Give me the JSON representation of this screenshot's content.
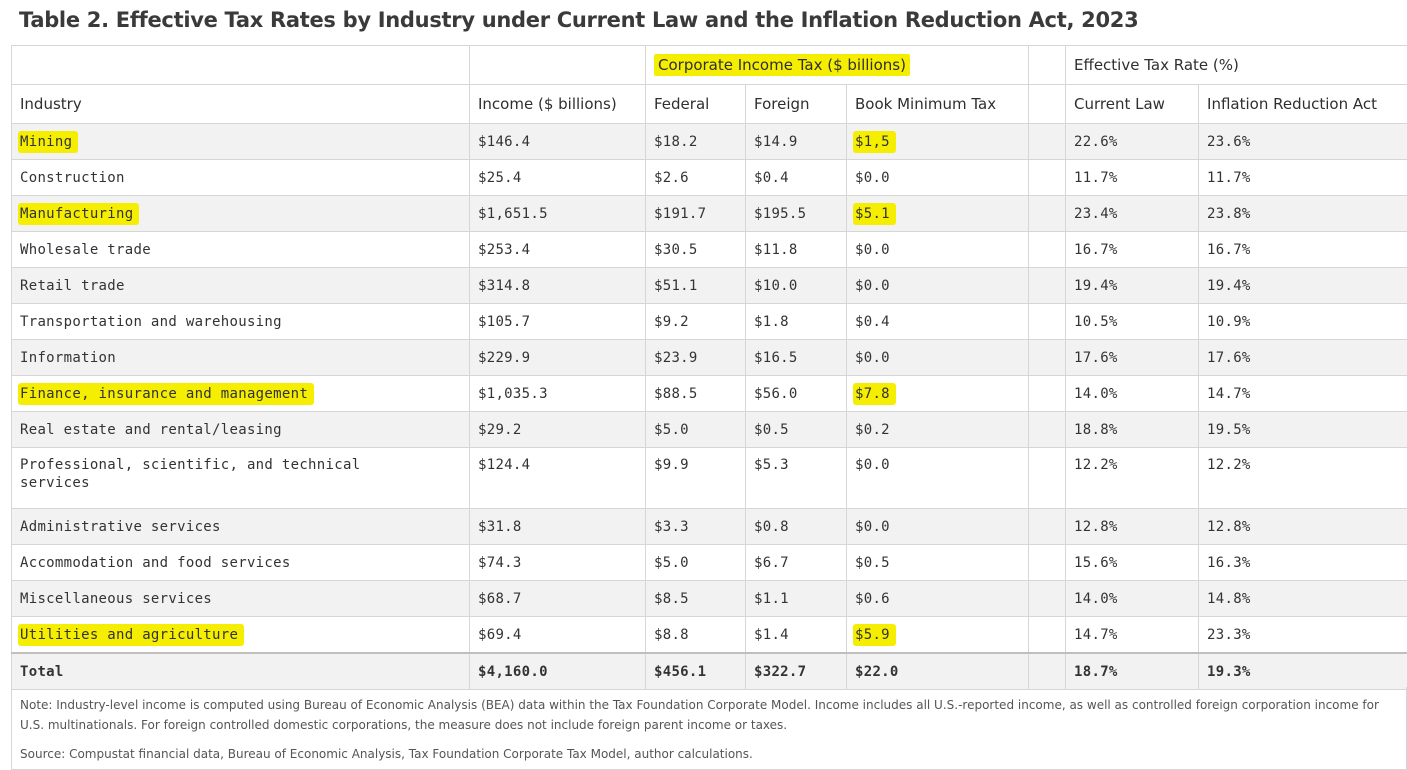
{
  "title": "Table 2. Effective Tax Rates by Industry under Current Law and the Inflation Reduction Act, 2023",
  "group_headers": {
    "corporate": "Corporate Income Tax ($ billions)",
    "effective": "Effective Tax Rate (%)"
  },
  "columns": {
    "industry": "Industry",
    "income": "Income ($ billions)",
    "federal": "Federal",
    "foreign": "Foreign",
    "bmt": "Book Minimum Tax",
    "current": "Current Law",
    "ira": "Inflation Reduction Act"
  },
  "rows": [
    {
      "industry": "Mining",
      "income": "$146.4",
      "federal": "$18.2",
      "foreign": "$14.9",
      "bmt": "$1,5",
      "current": "22.6%",
      "ira": "23.6%"
    },
    {
      "industry": "Construction",
      "income": "$25.4",
      "federal": "$2.6",
      "foreign": "$0.4",
      "bmt": "$0.0",
      "current": "11.7%",
      "ira": "11.7%"
    },
    {
      "industry": "Manufacturing",
      "income": "$1,651.5",
      "federal": "$191.7",
      "foreign": "$195.5",
      "bmt": "$5.1",
      "current": "23.4%",
      "ira": "23.8%"
    },
    {
      "industry": "Wholesale trade",
      "income": "$253.4",
      "federal": "$30.5",
      "foreign": "$11.8",
      "bmt": "$0.0",
      "current": "16.7%",
      "ira": "16.7%"
    },
    {
      "industry": "Retail trade",
      "income": "$314.8",
      "federal": "$51.1",
      "foreign": "$10.0",
      "bmt": "$0.0",
      "current": "19.4%",
      "ira": "19.4%"
    },
    {
      "industry": "Transportation and warehousing",
      "income": "$105.7",
      "federal": "$9.2",
      "foreign": "$1.8",
      "bmt": "$0.4",
      "current": "10.5%",
      "ira": "10.9%"
    },
    {
      "industry": "Information",
      "income": "$229.9",
      "federal": "$23.9",
      "foreign": "$16.5",
      "bmt": "$0.0",
      "current": "17.6%",
      "ira": "17.6%"
    },
    {
      "industry": "Finance, insurance and management",
      "income": "$1,035.3",
      "federal": "$88.5",
      "foreign": "$56.0",
      "bmt": "$7.8",
      "current": "14.0%",
      "ira": "14.7%"
    },
    {
      "industry": "Real estate and rental/leasing",
      "income": "$29.2",
      "federal": "$5.0",
      "foreign": "$0.5",
      "bmt": "$0.2",
      "current": "18.8%",
      "ira": "19.5%"
    },
    {
      "industry": "Professional, scientific, and technical services",
      "income": "$124.4",
      "federal": "$9.9",
      "foreign": "$5.3",
      "bmt": "$0.0",
      "current": "12.2%",
      "ira": "12.2%"
    },
    {
      "industry": "Administrative services",
      "income": "$31.8",
      "federal": "$3.3",
      "foreign": "$0.8",
      "bmt": "$0.0",
      "current": "12.8%",
      "ira": "12.8%"
    },
    {
      "industry": "Accommodation and food services",
      "income": "$74.3",
      "federal": "$5.0",
      "foreign": "$6.7",
      "bmt": "$0.5",
      "current": "15.6%",
      "ira": "16.3%"
    },
    {
      "industry": "Miscellaneous services",
      "income": "$68.7",
      "federal": "$8.5",
      "foreign": "$1.1",
      "bmt": "$0.6",
      "current": "14.0%",
      "ira": "14.8%"
    },
    {
      "industry": "Utilities and agriculture",
      "income": "$69.4",
      "federal": "$8.8",
      "foreign": "$1.4",
      "bmt": "$5.9",
      "current": "14.7%",
      "ira": "23.3%"
    }
  ],
  "total": {
    "industry": "Total",
    "income": "$4,160.0",
    "federal": "$456.1",
    "foreign": "$322.7",
    "bmt": "$22.0",
    "current": "18.7%",
    "ira": "19.3%"
  },
  "note": "Note: Industry-level income is computed using Bureau of Economic Analysis (BEA) data within the Tax Foundation Corporate Model. Income includes all U.S.-reported income, as well as controlled foreign corporation income for U.S. multinationals. For foreign controlled domestic corporations, the measure does not include foreign parent income or taxes.",
  "source": "Source: Compustat financial data, Bureau of Economic Analysis, Tax Foundation Corporate Tax Model, author calculations.",
  "highlight_color": "#f5ee00"
}
